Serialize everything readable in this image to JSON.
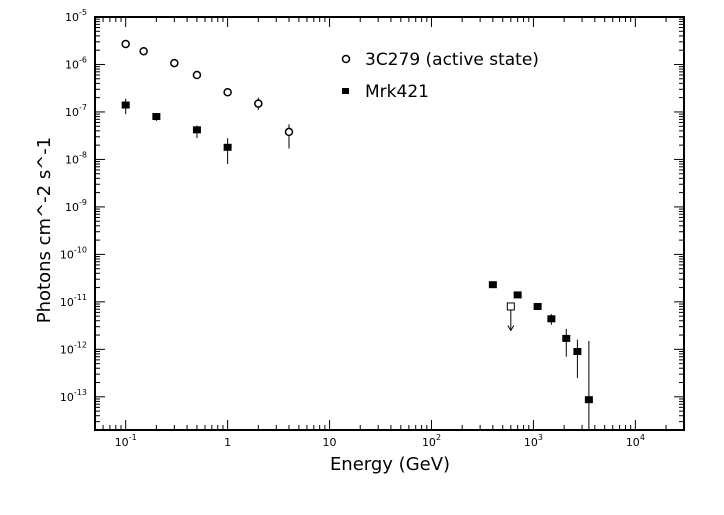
{
  "chart_data": {
    "type": "scatter",
    "title": "",
    "xlabel": "Energy (GeV)",
    "ylabel": "Photons cm^-2 s^-1",
    "xscale": "log",
    "yscale": "log",
    "xlim": [
      0.05,
      30000
    ],
    "ylim": [
      2e-14,
      1e-05
    ],
    "x_ticks": [
      {
        "value": 0.1,
        "base": "10",
        "exp": "-1"
      },
      {
        "value": 1,
        "base": "1",
        "exp": ""
      },
      {
        "value": 10,
        "base": "10",
        "exp": ""
      },
      {
        "value": 100,
        "base": "10",
        "exp": "2"
      },
      {
        "value": 1000,
        "base": "10",
        "exp": "3"
      },
      {
        "value": 10000,
        "base": "10",
        "exp": "4"
      }
    ],
    "y_ticks": [
      {
        "value": 1e-05,
        "base": "10",
        "exp": "-5"
      },
      {
        "value": 1e-06,
        "base": "10",
        "exp": "-6"
      },
      {
        "value": 1e-07,
        "base": "10",
        "exp": "-7"
      },
      {
        "value": 1e-08,
        "base": "10",
        "exp": "-8"
      },
      {
        "value": 1e-09,
        "base": "10",
        "exp": "-9"
      },
      {
        "value": 1e-10,
        "base": "10",
        "exp": "-10"
      },
      {
        "value": 1e-11,
        "base": "10",
        "exp": "-11"
      },
      {
        "value": 1e-12,
        "base": "10",
        "exp": "-12"
      },
      {
        "value": 1e-13,
        "base": "10",
        "exp": "-13"
      }
    ],
    "legend_position": "top-right",
    "series": [
      {
        "name": "3C279 (active state)",
        "marker": "open-circle",
        "points": [
          {
            "x": 0.1,
            "y": 2.7e-06
          },
          {
            "x": 0.15,
            "y": 1.9e-06
          },
          {
            "x": 0.3,
            "y": 1.07e-06
          },
          {
            "x": 0.5,
            "y": 6e-07
          },
          {
            "x": 1,
            "y": 2.6e-07
          },
          {
            "x": 2,
            "y": 1.5e-07,
            "err": [
              1.1e-07,
              2e-07
            ]
          },
          {
            "x": 4,
            "y": 3.8e-08,
            "err": [
              1.7e-08,
              5.5e-08
            ]
          }
        ]
      },
      {
        "name": "Mrk421",
        "marker": "filled-square",
        "points": [
          {
            "x": 0.1,
            "y": 1.4e-07,
            "err": [
              9e-08,
              1.9e-07
            ]
          },
          {
            "x": 0.2,
            "y": 8e-08,
            "err": [
              6.5e-08,
              9.5e-08
            ]
          },
          {
            "x": 0.5,
            "y": 4.2e-08,
            "err": [
              2.8e-08,
              5.2e-08
            ]
          },
          {
            "x": 1,
            "y": 1.8e-08,
            "err": [
              8e-09,
              2.8e-08
            ]
          },
          {
            "x": 400,
            "y": 2.3e-11
          },
          {
            "x": 700,
            "y": 1.4e-11
          },
          {
            "x": 1100,
            "y": 8e-12
          },
          {
            "x": 1500,
            "y": 4.4e-12,
            "err": [
              3.3e-12,
              5.5e-12
            ]
          },
          {
            "x": 2100,
            "y": 1.7e-12,
            "err": [
              7e-13,
              2.7e-12
            ]
          },
          {
            "x": 2700,
            "y": 9e-13,
            "err": [
              2.5e-13,
              1.6e-12
            ]
          },
          {
            "x": 3500,
            "y": 8.7e-14,
            "err": [
              2e-14,
              1.5e-12
            ]
          }
        ]
      },
      {
        "name": "upper limit",
        "marker": "open-square-arrow",
        "points": [
          {
            "x": 600,
            "y": 8e-12,
            "limit_to": 2.5e-12
          }
        ]
      }
    ]
  }
}
